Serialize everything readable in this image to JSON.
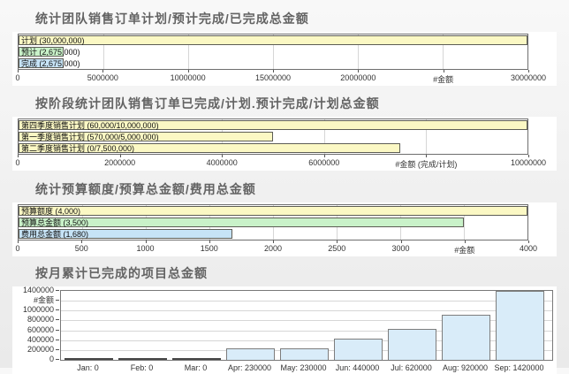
{
  "page": {
    "background_top": "#f8f8f8",
    "background_bottom": "#eaeaea"
  },
  "colors": {
    "plan_yellow": "#fbf8c4",
    "forecast_green": "#c9f2c9",
    "done_blue": "#c6e3f6",
    "monthly_blue": "#d9ecf9",
    "bar_border": "#5d5d55",
    "grid": "#d6d6d6",
    "axis_text": "#333333",
    "title_text": "#636363"
  },
  "sections": [
    {
      "title": "统计团队销售订单计划/预计完成/已完成总金额"
    },
    {
      "title": "按阶段统计团队销售订单已完成/计划.预计完成/计划总金额"
    },
    {
      "title": "统计预算额度/预算总金额/费用总金额"
    },
    {
      "title": "按月累计已完成的项目总金额"
    }
  ],
  "chart_data": [
    {
      "type": "bar",
      "orientation": "horizontal",
      "title": "统计团队销售订单计划/预计完成/已完成总金额",
      "bars": [
        {
          "label": "计划 (30,000,000)",
          "value": 30000000,
          "color": "#fbf8c4"
        },
        {
          "label": "预计 (2,675,000)",
          "value": 2675000,
          "color": "#c9f2c9"
        },
        {
          "label": "完成 (2,675,000)",
          "value": 2675000,
          "color": "#c6e3f6"
        }
      ],
      "xlim": [
        0,
        30000000
      ],
      "xticks": [
        {
          "pos": 0,
          "label": "0"
        },
        {
          "pos": 5000000,
          "label": "5000000"
        },
        {
          "pos": 10000000,
          "label": "10000000"
        },
        {
          "pos": 15000000,
          "label": "15000000"
        },
        {
          "pos": 20000000,
          "label": "20000000"
        },
        {
          "pos": 25000000,
          "label": "#金额"
        },
        {
          "pos": 30000000,
          "label": "30000000"
        }
      ]
    },
    {
      "type": "bar",
      "orientation": "horizontal",
      "title": "按阶段统计团队销售订单已完成/计划.预计完成/计划总金额",
      "bars": [
        {
          "label": "第四季度销售计划 (60,000/10,000,000)",
          "value": 10000000,
          "color": "#fbf8c4"
        },
        {
          "label": "第一季度销售计划 (570,000/5,000,000)",
          "value": 5000000,
          "color": "#fbf8c4"
        },
        {
          "label": "第二季度销售计划 (0/7,500,000)",
          "value": 7500000,
          "color": "#fbf8c4"
        }
      ],
      "xlim": [
        0,
        10000000
      ],
      "xticks": [
        {
          "pos": 0,
          "label": "0"
        },
        {
          "pos": 2000000,
          "label": "2000000"
        },
        {
          "pos": 4000000,
          "label": "4000000"
        },
        {
          "pos": 6000000,
          "label": "6000000"
        },
        {
          "pos": 8000000,
          "label": "#金额 (完成/计划)"
        },
        {
          "pos": 10000000,
          "label": "10000000"
        }
      ]
    },
    {
      "type": "bar",
      "orientation": "horizontal",
      "title": "统计预算额度/预算总金额/费用总金额",
      "bars": [
        {
          "label": "预算额度 (4,000)",
          "value": 4000,
          "color": "#fbf8c4"
        },
        {
          "label": "预算总金额 (3,500)",
          "value": 3500,
          "color": "#c9f2c9"
        },
        {
          "label": "费用总金额 (1,680)",
          "value": 1680,
          "color": "#c6e3f6"
        }
      ],
      "xlim": [
        0,
        4000
      ],
      "xticks": [
        {
          "pos": 0,
          "label": "0"
        },
        {
          "pos": 500,
          "label": "500"
        },
        {
          "pos": 1000,
          "label": "1000"
        },
        {
          "pos": 1500,
          "label": "1500"
        },
        {
          "pos": 2000,
          "label": "2000"
        },
        {
          "pos": 2500,
          "label": "2500"
        },
        {
          "pos": 3000,
          "label": "3000"
        },
        {
          "pos": 3500,
          "label": "#金额"
        },
        {
          "pos": 4000,
          "label": "4000"
        }
      ]
    },
    {
      "type": "bar",
      "orientation": "vertical",
      "title": "按月累计已完成的项目总金额",
      "categories": [
        "Jan: 0",
        "Feb: 0",
        "Mar: 0",
        "Apr: 230000",
        "May: 230000",
        "Jun: 440000",
        "Jul: 620000",
        "Aug: 920000",
        "Sep: 1420000"
      ],
      "values": [
        0,
        0,
        0,
        230000,
        230000,
        440000,
        620000,
        920000,
        1420000
      ],
      "bar_color": "#d9ecf9",
      "ylim": [
        0,
        1400000
      ],
      "yticks": [
        {
          "pos": 1400000,
          "label": "1400000"
        },
        {
          "pos": 1200000,
          "label": "#金额"
        },
        {
          "pos": 1000000,
          "label": "1000000"
        },
        {
          "pos": 800000,
          "label": "800000"
        },
        {
          "pos": 600000,
          "label": "600000"
        },
        {
          "pos": 400000,
          "label": "400000"
        },
        {
          "pos": 200000,
          "label": "200000"
        },
        {
          "pos": 0,
          "label": "0"
        }
      ]
    }
  ]
}
